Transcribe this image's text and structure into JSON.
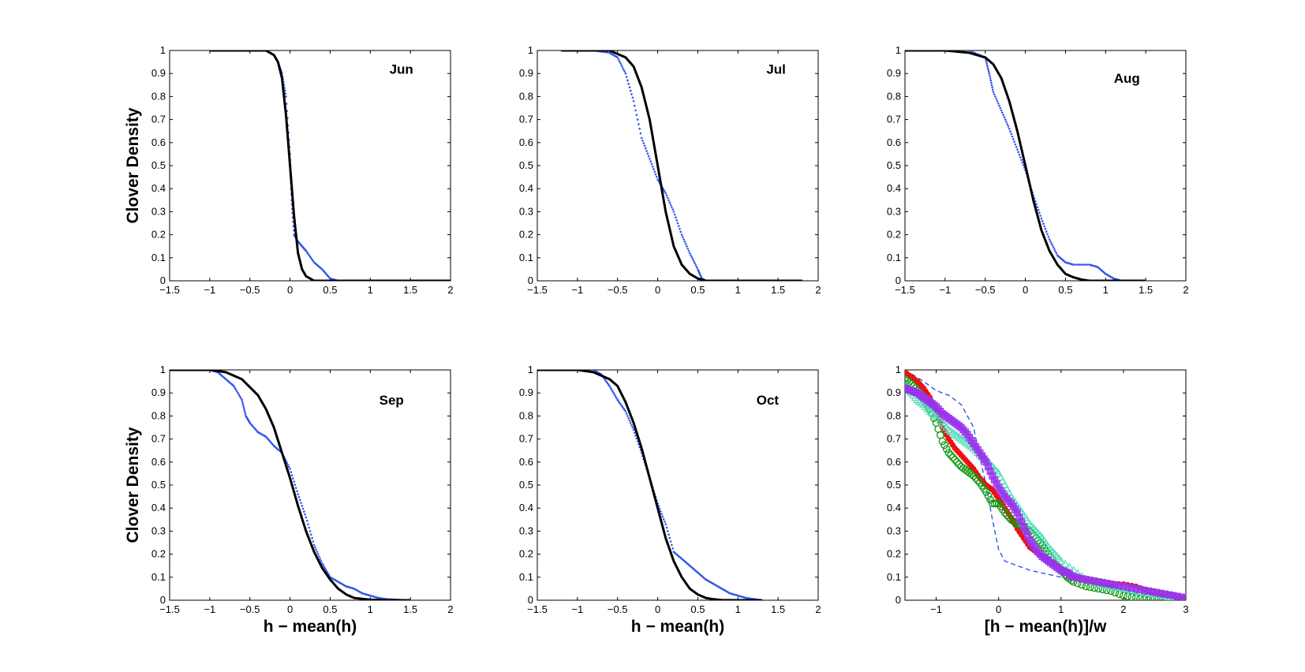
{
  "chart_data": [
    {
      "type": "line",
      "title": "Jun",
      "xlabel": "",
      "ylabel": "Clover Density",
      "xlim": [
        -1.5,
        2
      ],
      "ylim": [
        0,
        1
      ],
      "xticks": [
        "-1.5",
        "-1",
        "-0.5",
        "0",
        "0.5",
        "1",
        "1.5",
        "2"
      ],
      "yticks": [
        "0",
        "0.1",
        "0.2",
        "0.3",
        "0.4",
        "0.5",
        "0.6",
        "0.7",
        "0.8",
        "0.9",
        "1"
      ],
      "grid": false,
      "fit_color": "#000000",
      "data_color": "#3355ee",
      "series": [
        {
          "name": "data",
          "style": "dots",
          "x": [
            -1.0,
            -0.5,
            -0.3,
            -0.2,
            -0.15,
            -0.1,
            -0.05,
            0.0,
            0.02,
            0.05,
            0.1,
            0.15,
            0.2,
            0.3,
            0.4,
            0.5,
            0.6,
            1.0,
            1.5,
            2.0
          ],
          "y": [
            1.0,
            1.0,
            1.0,
            0.98,
            0.95,
            0.9,
            0.8,
            0.55,
            0.35,
            0.2,
            0.17,
            0.15,
            0.13,
            0.08,
            0.05,
            0.01,
            0.0,
            0.0,
            0.0,
            0.0
          ]
        },
        {
          "name": "fit",
          "style": "line",
          "x": [
            -1.0,
            -0.3,
            -0.2,
            -0.15,
            -0.1,
            -0.05,
            0.0,
            0.05,
            0.1,
            0.15,
            0.2,
            0.3,
            0.5,
            2.0
          ],
          "y": [
            1.0,
            1.0,
            0.98,
            0.95,
            0.88,
            0.72,
            0.5,
            0.28,
            0.12,
            0.05,
            0.02,
            0.0,
            0.0,
            0.0
          ]
        }
      ]
    },
    {
      "type": "line",
      "title": "Jul",
      "xlabel": "",
      "ylabel": "",
      "xlim": [
        -1.5,
        2
      ],
      "ylim": [
        0,
        1
      ],
      "xticks": [
        "-1.5",
        "-1",
        "-0.5",
        "0",
        "0.5",
        "1",
        "1.5",
        "2"
      ],
      "yticks": [
        "0",
        "0.1",
        "0.2",
        "0.3",
        "0.4",
        "0.5",
        "0.6",
        "0.7",
        "0.8",
        "0.9",
        "1"
      ],
      "grid": false,
      "fit_color": "#000000",
      "data_color": "#3355ee",
      "series": [
        {
          "name": "data",
          "style": "dots",
          "x": [
            -1.2,
            -0.8,
            -0.6,
            -0.5,
            -0.4,
            -0.3,
            -0.2,
            -0.1,
            0.0,
            0.1,
            0.2,
            0.3,
            0.4,
            0.5,
            0.55,
            0.6,
            1.0,
            1.5,
            1.8
          ],
          "y": [
            1.0,
            1.0,
            0.99,
            0.97,
            0.9,
            0.78,
            0.62,
            0.53,
            0.44,
            0.38,
            0.3,
            0.2,
            0.12,
            0.05,
            0.01,
            0.0,
            0.0,
            0.0,
            0.0
          ]
        },
        {
          "name": "fit",
          "style": "line",
          "x": [
            -1.2,
            -0.6,
            -0.4,
            -0.3,
            -0.2,
            -0.1,
            0.0,
            0.1,
            0.2,
            0.3,
            0.4,
            0.5,
            0.6,
            1.8
          ],
          "y": [
            1.0,
            1.0,
            0.97,
            0.93,
            0.84,
            0.7,
            0.5,
            0.3,
            0.15,
            0.07,
            0.03,
            0.01,
            0.0,
            0.0
          ]
        }
      ]
    },
    {
      "type": "line",
      "title": "Aug",
      "xlabel": "",
      "ylabel": "",
      "xlim": [
        -1.5,
        2
      ],
      "ylim": [
        0,
        1
      ],
      "xticks": [
        "-1.5",
        "-1",
        "-0.5",
        "0",
        "0.5",
        "1",
        "1.5",
        "2"
      ],
      "yticks": [
        "0",
        "0.1",
        "0.2",
        "0.3",
        "0.4",
        "0.5",
        "0.6",
        "0.7",
        "0.8",
        "0.9",
        "1"
      ],
      "grid": false,
      "fit_color": "#000000",
      "data_color": "#3355ee",
      "series": [
        {
          "name": "data",
          "style": "dots",
          "x": [
            -1.5,
            -0.7,
            -0.5,
            -0.45,
            -0.4,
            -0.3,
            -0.2,
            -0.1,
            0.0,
            0.1,
            0.2,
            0.3,
            0.4,
            0.5,
            0.6,
            0.8,
            0.9,
            1.0,
            1.1,
            1.2,
            1.5
          ],
          "y": [
            1.0,
            1.0,
            0.97,
            0.9,
            0.82,
            0.74,
            0.66,
            0.57,
            0.48,
            0.37,
            0.27,
            0.18,
            0.11,
            0.08,
            0.07,
            0.07,
            0.06,
            0.03,
            0.01,
            0.0,
            0.0
          ]
        },
        {
          "name": "fit",
          "style": "line",
          "x": [
            -1.5,
            -1.0,
            -0.7,
            -0.5,
            -0.4,
            -0.3,
            -0.2,
            -0.1,
            0.0,
            0.1,
            0.2,
            0.3,
            0.4,
            0.5,
            0.6,
            0.7,
            0.8,
            1.0,
            1.5
          ],
          "y": [
            1.0,
            1.0,
            0.99,
            0.97,
            0.94,
            0.88,
            0.78,
            0.65,
            0.5,
            0.35,
            0.22,
            0.13,
            0.07,
            0.03,
            0.015,
            0.005,
            0.0,
            0.0,
            0.0
          ]
        }
      ]
    },
    {
      "type": "line",
      "title": "Sep",
      "xlabel": "h − mean(h)",
      "ylabel": "Clover Density",
      "xlim": [
        -1.5,
        2
      ],
      "ylim": [
        0,
        1
      ],
      "xticks": [
        "-1.5",
        "-1",
        "-0.5",
        "0",
        "0.5",
        "1",
        "1.5",
        "2"
      ],
      "yticks": [
        "0",
        "0.1",
        "0.2",
        "0.3",
        "0.4",
        "0.5",
        "0.6",
        "0.7",
        "0.8",
        "0.9",
        "1"
      ],
      "grid": false,
      "fit_color": "#000000",
      "data_color": "#3355ee",
      "series": [
        {
          "name": "data",
          "style": "dots",
          "x": [
            -1.5,
            -1.0,
            -0.9,
            -0.8,
            -0.7,
            -0.6,
            -0.55,
            -0.5,
            -0.4,
            -0.3,
            -0.2,
            -0.1,
            0.0,
            0.1,
            0.2,
            0.3,
            0.4,
            0.5,
            0.6,
            0.7,
            0.8,
            0.9,
            1.0,
            1.1,
            1.2,
            1.3,
            1.4,
            1.5
          ],
          "y": [
            1.0,
            1.0,
            0.99,
            0.96,
            0.93,
            0.87,
            0.8,
            0.77,
            0.73,
            0.71,
            0.67,
            0.64,
            0.57,
            0.46,
            0.36,
            0.24,
            0.16,
            0.1,
            0.08,
            0.06,
            0.05,
            0.03,
            0.02,
            0.01,
            0.005,
            0.003,
            0.001,
            0.0
          ]
        },
        {
          "name": "fit",
          "style": "line",
          "x": [
            -1.5,
            -1.0,
            -0.8,
            -0.6,
            -0.4,
            -0.3,
            -0.2,
            -0.1,
            0.0,
            0.1,
            0.2,
            0.3,
            0.4,
            0.5,
            0.6,
            0.7,
            0.8,
            1.0,
            1.2,
            1.5
          ],
          "y": [
            1.0,
            1.0,
            0.99,
            0.96,
            0.89,
            0.83,
            0.75,
            0.64,
            0.53,
            0.41,
            0.3,
            0.21,
            0.14,
            0.09,
            0.05,
            0.025,
            0.01,
            0.002,
            0.0,
            0.0
          ]
        }
      ]
    },
    {
      "type": "line",
      "title": "Oct",
      "xlabel": "h − mean(h)",
      "ylabel": "",
      "xlim": [
        -1.5,
        2
      ],
      "ylim": [
        0,
        1
      ],
      "xticks": [
        "-1.5",
        "-1",
        "-0.5",
        "0",
        "0.5",
        "1",
        "1.5",
        "2"
      ],
      "yticks": [
        "0",
        "0.1",
        "0.2",
        "0.3",
        "0.4",
        "0.5",
        "0.6",
        "0.7",
        "0.8",
        "0.9",
        "1"
      ],
      "grid": false,
      "fit_color": "#000000",
      "data_color": "#3355ee",
      "series": [
        {
          "name": "data",
          "style": "dots",
          "x": [
            -1.5,
            -0.8,
            -0.7,
            -0.6,
            -0.5,
            -0.4,
            -0.3,
            -0.2,
            -0.1,
            0.0,
            0.1,
            0.2,
            0.3,
            0.4,
            0.5,
            0.6,
            0.7,
            0.8,
            0.9,
            1.0,
            1.1,
            1.2,
            1.3
          ],
          "y": [
            1.0,
            1.0,
            0.98,
            0.93,
            0.87,
            0.82,
            0.74,
            0.64,
            0.53,
            0.42,
            0.33,
            0.21,
            0.18,
            0.15,
            0.12,
            0.09,
            0.07,
            0.05,
            0.03,
            0.02,
            0.01,
            0.005,
            0.0
          ]
        },
        {
          "name": "fit",
          "style": "line",
          "x": [
            -1.5,
            -1.0,
            -0.8,
            -0.6,
            -0.5,
            -0.4,
            -0.3,
            -0.2,
            -0.1,
            0.0,
            0.1,
            0.2,
            0.3,
            0.4,
            0.5,
            0.6,
            0.7,
            0.8,
            1.0,
            1.3
          ],
          "y": [
            1.0,
            1.0,
            0.99,
            0.96,
            0.93,
            0.86,
            0.77,
            0.66,
            0.53,
            0.4,
            0.27,
            0.17,
            0.1,
            0.05,
            0.025,
            0.01,
            0.004,
            0.001,
            0.0,
            0.0
          ]
        }
      ]
    },
    {
      "type": "scatter",
      "title": "",
      "xlabel": "[h − mean(h)]/w",
      "ylabel": "",
      "xlim": [
        -1.5,
        3
      ],
      "ylim": [
        0,
        1
      ],
      "xticks": [
        "-1",
        "0",
        "1",
        "2",
        "3"
      ],
      "xtick_values": [
        -1,
        0,
        1,
        2,
        3
      ],
      "yticks": [
        "0",
        "0.1",
        "0.2",
        "0.3",
        "0.4",
        "0.5",
        "0.6",
        "0.7",
        "0.8",
        "0.9",
        "1"
      ],
      "grid": false,
      "series": [
        {
          "name": "dashed",
          "style": "dashed",
          "color": "#3355ee",
          "x": [
            -1.5,
            -1.2,
            -1.0,
            -0.8,
            -0.6,
            -0.4,
            -0.3,
            -0.2,
            -0.1,
            0.0,
            0.1,
            0.3,
            0.5,
            1.0,
            1.5,
            2.0,
            2.5,
            3.0
          ],
          "y": [
            1.0,
            0.95,
            0.91,
            0.89,
            0.85,
            0.75,
            0.62,
            0.5,
            0.35,
            0.22,
            0.17,
            0.15,
            0.13,
            0.1,
            0.07,
            0.04,
            0.02,
            0.0
          ]
        },
        {
          "name": "red-dots",
          "style": "dots",
          "color": "#ee1111",
          "x": [
            -1.5,
            -1.4,
            -1.3,
            -1.2,
            -1.1,
            -1.0,
            -0.9,
            -0.8,
            -0.7,
            -0.6,
            -0.5,
            -0.4,
            -0.3,
            -0.2,
            -0.1,
            0.0,
            0.1,
            0.2,
            0.3,
            0.4,
            0.5,
            0.6,
            0.7,
            0.8,
            0.9,
            1.0,
            1.2,
            1.4,
            1.6,
            1.8,
            2.0,
            2.2,
            2.4,
            2.6,
            2.8,
            3.0
          ],
          "y": [
            0.99,
            0.97,
            0.95,
            0.92,
            0.88,
            0.82,
            0.75,
            0.7,
            0.66,
            0.63,
            0.6,
            0.57,
            0.53,
            0.5,
            0.48,
            0.44,
            0.4,
            0.36,
            0.31,
            0.27,
            0.23,
            0.21,
            0.19,
            0.17,
            0.16,
            0.14,
            0.11,
            0.09,
            0.08,
            0.07,
            0.07,
            0.06,
            0.04,
            0.03,
            0.02,
            0.01
          ]
        },
        {
          "name": "green-circles",
          "style": "circles",
          "color": "#119911",
          "x": [
            -1.5,
            -1.4,
            -1.3,
            -1.2,
            -1.1,
            -1.0,
            -0.9,
            -0.8,
            -0.7,
            -0.6,
            -0.5,
            -0.4,
            -0.3,
            -0.2,
            -0.1,
            0.0,
            0.1,
            0.2,
            0.3,
            0.4,
            0.5,
            0.6,
            0.7,
            0.8,
            0.9,
            1.0,
            1.1,
            1.2,
            1.4,
            1.6,
            1.8,
            2.0,
            2.2,
            2.4,
            2.6,
            2.8,
            3.0
          ],
          "y": [
            0.96,
            0.94,
            0.91,
            0.87,
            0.83,
            0.77,
            0.69,
            0.64,
            0.61,
            0.58,
            0.56,
            0.54,
            0.51,
            0.47,
            0.42,
            0.42,
            0.38,
            0.35,
            0.33,
            0.32,
            0.3,
            0.27,
            0.24,
            0.2,
            0.16,
            0.13,
            0.1,
            0.08,
            0.06,
            0.05,
            0.04,
            0.02,
            0.01,
            0.0,
            0.0,
            0.0,
            0.0
          ]
        },
        {
          "name": "cyan-triangles",
          "style": "triangles",
          "color": "#55ddbb",
          "x": [
            -1.5,
            -1.4,
            -1.3,
            -1.2,
            -1.1,
            -1.0,
            -0.9,
            -0.8,
            -0.7,
            -0.6,
            -0.5,
            -0.4,
            -0.3,
            -0.2,
            -0.1,
            0.0,
            0.1,
            0.2,
            0.3,
            0.4,
            0.5,
            0.6,
            0.7,
            0.8,
            0.9,
            1.0,
            1.2,
            1.4,
            1.6,
            1.8,
            2.0,
            2.2,
            2.4,
            2.6,
            2.8,
            3.0
          ],
          "y": [
            0.93,
            0.9,
            0.87,
            0.85,
            0.82,
            0.8,
            0.77,
            0.74,
            0.72,
            0.7,
            0.68,
            0.66,
            0.63,
            0.61,
            0.58,
            0.55,
            0.5,
            0.45,
            0.41,
            0.37,
            0.33,
            0.3,
            0.27,
            0.23,
            0.2,
            0.17,
            0.13,
            0.09,
            0.07,
            0.06,
            0.05,
            0.04,
            0.03,
            0.02,
            0.01,
            0.01
          ]
        },
        {
          "name": "purple-squares",
          "style": "squares",
          "color": "#9933ee",
          "x": [
            -1.5,
            -1.4,
            -1.3,
            -1.2,
            -1.1,
            -1.0,
            -0.9,
            -0.8,
            -0.7,
            -0.6,
            -0.5,
            -0.4,
            -0.3,
            -0.2,
            -0.1,
            0.0,
            0.1,
            0.2,
            0.3,
            0.4,
            0.5,
            0.6,
            0.7,
            0.8,
            0.9,
            1.0,
            1.1,
            1.2,
            1.4,
            1.6,
            1.8,
            2.0,
            2.2,
            2.4,
            2.6,
            2.8,
            3.0
          ],
          "y": [
            0.92,
            0.91,
            0.9,
            0.88,
            0.86,
            0.84,
            0.81,
            0.79,
            0.77,
            0.75,
            0.72,
            0.68,
            0.64,
            0.6,
            0.54,
            0.49,
            0.45,
            0.42,
            0.38,
            0.32,
            0.26,
            0.22,
            0.19,
            0.17,
            0.15,
            0.13,
            0.12,
            0.1,
            0.09,
            0.08,
            0.07,
            0.06,
            0.05,
            0.04,
            0.03,
            0.02,
            0.01
          ]
        }
      ]
    }
  ]
}
